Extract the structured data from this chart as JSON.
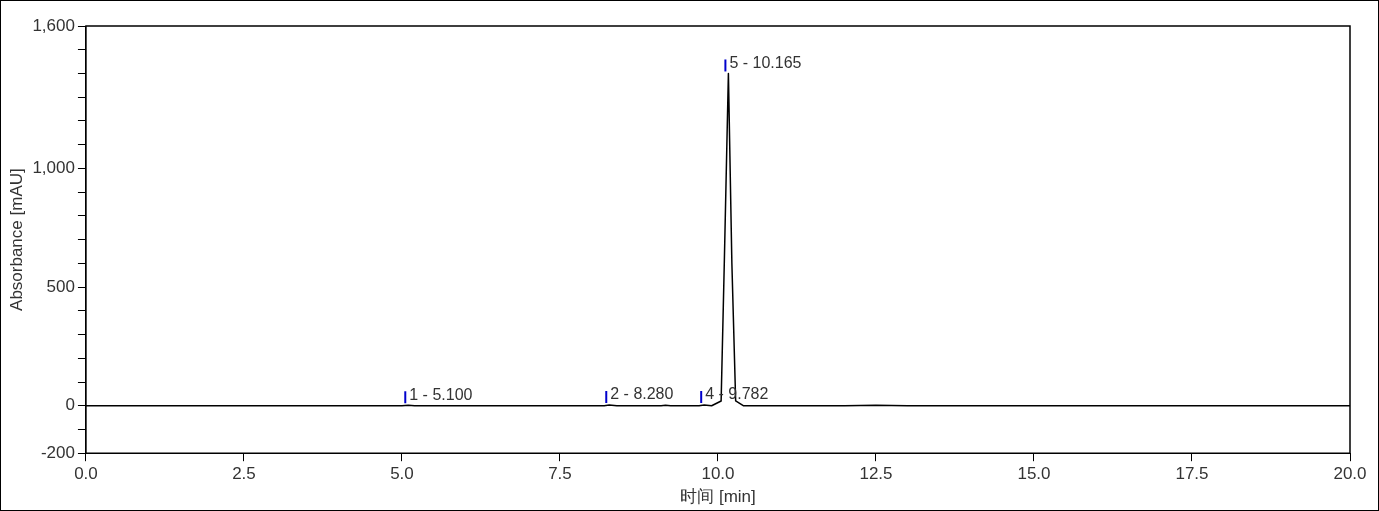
{
  "chart_data": {
    "type": "line",
    "xlabel": "时间 [min]",
    "ylabel": "Absorbance [mAU]",
    "x": [
      0,
      1.4,
      5.0,
      5.1,
      5.2,
      8.2,
      8.28,
      8.4,
      9.1,
      9.17,
      9.25,
      9.7,
      9.782,
      9.9,
      10.05,
      10.1,
      10.165,
      10.22,
      10.28,
      10.4,
      12.0,
      12.5,
      13.0,
      20
    ],
    "series": [
      {
        "color": "#000000",
        "values": [
          0,
          0,
          0,
          2,
          0,
          0,
          3,
          0,
          0,
          2,
          0,
          0,
          3,
          0,
          20,
          600,
          1400,
          600,
          20,
          0,
          0,
          2,
          0,
          0
        ]
      }
    ],
    "xlim": [
      0,
      20
    ],
    "ylim": [
      -200,
      1600
    ],
    "xticks": [
      {
        "value": 0,
        "label": "0.0"
      },
      {
        "value": 2.5,
        "label": "2.5"
      },
      {
        "value": 5,
        "label": "5.0"
      },
      {
        "value": 7.5,
        "label": "7.5"
      },
      {
        "value": 10,
        "label": "10.0"
      },
      {
        "value": 12.5,
        "label": "12.5"
      },
      {
        "value": 15,
        "label": "15.0"
      },
      {
        "value": 17.5,
        "label": "17.5"
      },
      {
        "value": 20,
        "label": "20.0"
      }
    ],
    "yticks": [
      -200,
      {
        "value": -100,
        "label": null
      },
      0,
      {
        "value": 100,
        "label": null
      },
      {
        "value": 200,
        "label": null
      },
      {
        "value": 300,
        "label": null
      },
      {
        "value": 400,
        "label": null
      },
      500,
      {
        "value": 600,
        "label": null
      },
      {
        "value": 700,
        "label": null
      },
      {
        "value": 800,
        "label": null
      },
      {
        "value": 900,
        "label": null
      },
      {
        "value": 1000,
        "label": "1,000"
      },
      {
        "value": 1100,
        "label": null
      },
      {
        "value": 1200,
        "label": null
      },
      {
        "value": 1300,
        "label": null
      },
      {
        "value": 1400,
        "label": null
      },
      {
        "value": 1500,
        "label": null
      },
      {
        "value": 1600,
        "label": "1,600"
      }
    ],
    "annotations": [
      {
        "text": "1 - 5.100",
        "x": 5.1,
        "y": 2
      },
      {
        "text": "2 - 8.280",
        "x": 8.28,
        "y": 3
      },
      {
        "text": "4 - 9.782",
        "x": 9.782,
        "y": 3
      },
      {
        "text": "5 - 10.165",
        "x": 10.165,
        "y": 1400
      }
    ],
    "grid": false,
    "legend": false,
    "marker": "none",
    "line_style": "solid"
  }
}
